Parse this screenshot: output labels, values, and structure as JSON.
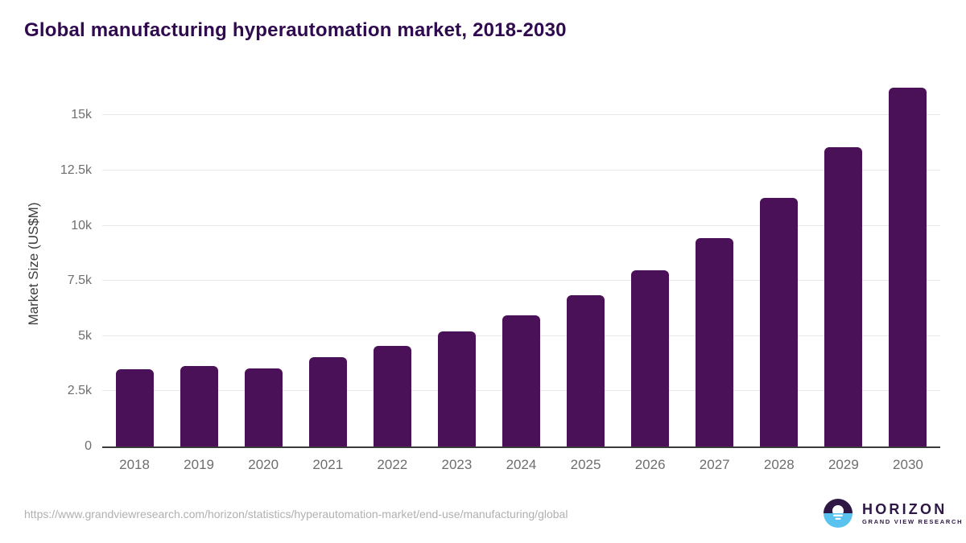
{
  "title": "Global manufacturing hyperautomation market, 2018-2030",
  "chart_data": {
    "type": "bar",
    "title": "Global manufacturing hyperautomation market, 2018-2030",
    "categories": [
      "2018",
      "2019",
      "2020",
      "2021",
      "2022",
      "2023",
      "2024",
      "2025",
      "2026",
      "2027",
      "2028",
      "2029",
      "2030"
    ],
    "values": [
      3500,
      3640,
      3550,
      4050,
      4570,
      5210,
      5950,
      6860,
      7990,
      9450,
      11260,
      13540,
      16260
    ],
    "xlabel": "",
    "ylabel": "Market Size (US$M)",
    "yticks": [
      {
        "value": 0,
        "label": "0"
      },
      {
        "value": 2500,
        "label": "2.5k"
      },
      {
        "value": 5000,
        "label": "5k"
      },
      {
        "value": 7500,
        "label": "7.5k"
      },
      {
        "value": 10000,
        "label": "10k"
      },
      {
        "value": 12500,
        "label": "12.5k"
      },
      {
        "value": 15000,
        "label": "15k"
      }
    ],
    "ylim": [
      0,
      16750
    ],
    "grid": "horizontal-only",
    "legend": "none",
    "bar_color": "#4a1158"
  },
  "footer": {
    "source_url": "https://www.grandviewresearch.com/horizon/statistics/hyperautomation-market/end-use/manufacturing/global",
    "logo": {
      "name": "HORIZON",
      "subtitle": "GRAND VIEW RESEARCH"
    }
  },
  "colors": {
    "bar": "#4a1158",
    "title": "#2f0a4e",
    "gridline": "#e9e9e9",
    "axis_line": "#3a3a3a",
    "tick_label": "#6e6e6e",
    "url": "#b0b0b0",
    "logo_purple": "#2e1745",
    "logo_blue": "#59c2ee"
  }
}
